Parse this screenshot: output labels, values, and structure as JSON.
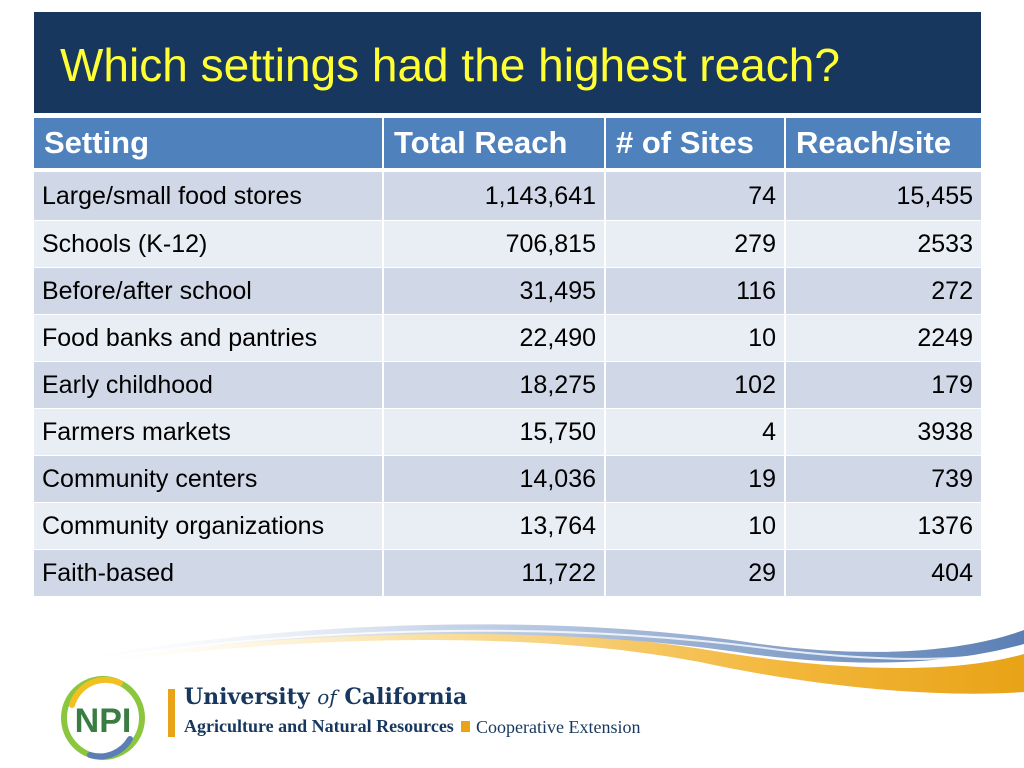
{
  "slide": {
    "title": "Which settings had the highest reach?"
  },
  "table": {
    "headers": [
      "Setting",
      "Total Reach",
      "# of Sites",
      "Reach/site"
    ],
    "rows": [
      {
        "setting": "Large/small food stores",
        "total_reach": "1,143,641",
        "sites": "74",
        "reach_per_site": "15,455"
      },
      {
        "setting": "Schools (K-12)",
        "total_reach": "706,815",
        "sites": "279",
        "reach_per_site": "2533"
      },
      {
        "setting": "Before/after school",
        "total_reach": "31,495",
        "sites": "116",
        "reach_per_site": "272"
      },
      {
        "setting": "Food banks and pantries",
        "total_reach": "22,490",
        "sites": "10",
        "reach_per_site": "2249"
      },
      {
        "setting": "Early childhood",
        "total_reach": "18,275",
        "sites": "102",
        "reach_per_site": "179"
      },
      {
        "setting": "Farmers markets",
        "total_reach": "15,750",
        "sites": "4",
        "reach_per_site": "3938"
      },
      {
        "setting": "Community centers",
        "total_reach": "14,036",
        "sites": "19",
        "reach_per_site": "739"
      },
      {
        "setting": "Community organizations",
        "total_reach": "13,764",
        "sites": "10",
        "reach_per_site": "1376"
      },
      {
        "setting": "Faith-based",
        "total_reach": "11,722",
        "sites": "29",
        "reach_per_site": "404"
      }
    ]
  },
  "footer": {
    "npi_logo_text": "NPI",
    "uc_name_part1": "University ",
    "uc_name_of": "of",
    "uc_name_part2": " California",
    "division": "Agriculture and Natural Resources",
    "extension": "Cooperative Extension"
  },
  "colors": {
    "title_bg": "#17375e",
    "title_text": "#ffff33",
    "header_bg": "#4f81bd",
    "row_odd": "#d0d8e8",
    "row_even": "#e9edf4",
    "accent_gold": "#e8a317",
    "accent_blue": "#5b7fb5"
  }
}
